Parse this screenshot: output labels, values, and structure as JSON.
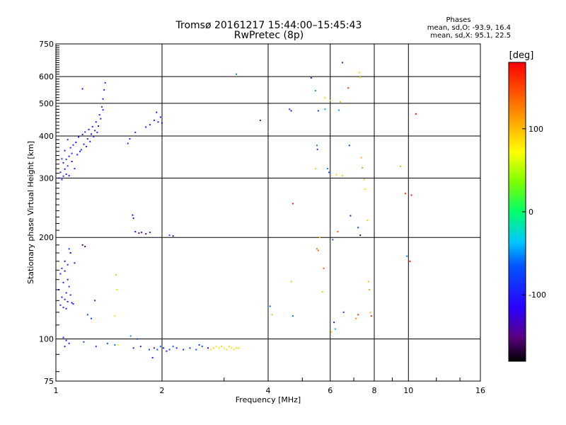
{
  "chart_data": {
    "type": "scatter",
    "title": "Tromsø 20161217 15:44:00–15:45:43",
    "subtitle": "RwPretec (8p)",
    "stats": {
      "heading": "Phases",
      "line_o": "mean, sd,O: -93.9, 16.4",
      "line_x": "mean, sd,X:  95.1, 22.5"
    },
    "xlabel": "Frequency [MHz]",
    "ylabel": "Stationary phase Virtual Height [km]",
    "x_scale": "log",
    "y_scale": "log",
    "xlim": [
      1,
      16
    ],
    "ylim": [
      75,
      750
    ],
    "x_ticks": [
      1,
      2,
      4,
      6,
      8,
      10,
      16
    ],
    "x_tick_labels": [
      "1",
      "2",
      "4",
      "6",
      "8",
      "10",
      "16"
    ],
    "y_ticks": [
      75,
      100,
      200,
      300,
      400,
      500,
      600,
      750
    ],
    "y_tick_labels": [
      "75",
      "100",
      "200",
      "300",
      "400",
      "500",
      "600",
      "750"
    ],
    "grid": true,
    "colorbar": {
      "label": "[deg]",
      "min": -180,
      "max": 180,
      "ticks": [
        -100,
        0,
        100
      ],
      "tick_labels": [
        "-100",
        "0",
        "100"
      ]
    },
    "series": [
      {
        "points": [
          [
            1.02,
            300
          ],
          [
            1.04,
            297
          ],
          [
            1.05,
            304
          ],
          [
            1.03,
            312
          ],
          [
            1.06,
            319
          ],
          [
            1.08,
            326
          ],
          [
            1.05,
            333
          ],
          [
            1.07,
            341
          ],
          [
            1.09,
            348
          ],
          [
            1.11,
            355
          ],
          [
            1.06,
            362
          ],
          [
            1.1,
            369
          ],
          [
            1.12,
            376
          ],
          [
            1.14,
            383
          ],
          [
            1.08,
            390
          ],
          [
            1.16,
            397
          ],
          [
            1.19,
            404
          ],
          [
            1.21,
            411
          ],
          [
            1.24,
            418
          ],
          [
            1.27,
            426
          ],
          [
            1.3,
            440
          ],
          [
            1.33,
            462
          ],
          [
            1.35,
            488
          ],
          [
            1.36,
            515
          ],
          [
            1.37,
            548
          ],
          [
            1.38,
            575
          ],
          [
            1.15,
            352
          ],
          [
            1.18,
            364
          ],
          [
            1.2,
            378
          ],
          [
            1.23,
            392
          ],
          [
            1.26,
            405
          ],
          [
            1.29,
            415
          ],
          [
            1.32,
            428
          ],
          [
            1.13,
            320
          ],
          [
            1.09,
            305
          ],
          [
            1.07,
            308
          ],
          [
            1.04,
            342
          ],
          [
            1.11,
            336
          ],
          [
            1.17,
            360
          ],
          [
            1.22,
            372
          ],
          [
            1.25,
            385
          ],
          [
            1.28,
            398
          ],
          [
            1.31,
            410
          ],
          [
            1.34,
            450
          ],
          [
            1.36,
            478
          ],
          [
            1.19,
            552
          ],
          [
            1.6,
            380
          ],
          [
            1.62,
            392
          ],
          [
            1.68,
            410
          ],
          [
            1.8,
            425
          ],
          [
            1.85,
            432
          ],
          [
            1.9,
            445
          ],
          [
            1.95,
            440
          ],
          [
            2.0,
            437
          ],
          [
            1.93,
            470
          ],
          [
            1.98,
            455
          ],
          [
            1.65,
            233
          ],
          [
            1.66,
            228
          ],
          [
            1.68,
            208
          ],
          [
            1.72,
            206
          ],
          [
            1.75,
            207
          ],
          [
            1.8,
            205
          ],
          [
            1.85,
            207
          ],
          [
            2.1,
            203
          ],
          [
            2.15,
            202
          ],
          [
            3.25,
            610
          ],
          [
            3.8,
            445
          ],
          [
            1.04,
            162
          ],
          [
            1.06,
            159
          ],
          [
            1.03,
            156
          ],
          [
            1.08,
            150
          ],
          [
            1.05,
            147
          ],
          [
            1.09,
            143
          ],
          [
            1.02,
            140
          ],
          [
            1.07,
            137
          ],
          [
            1.1,
            135
          ],
          [
            1.04,
            133
          ],
          [
            1.06,
            131
          ],
          [
            1.08,
            129
          ],
          [
            1.11,
            128
          ],
          [
            1.03,
            126
          ],
          [
            1.05,
            124
          ],
          [
            1.07,
            123
          ],
          [
            1.12,
            127
          ],
          [
            1.09,
            185
          ],
          [
            1.1,
            180
          ],
          [
            1.06,
            170
          ],
          [
            1.08,
            166
          ],
          [
            1.13,
            168
          ],
          [
            1.19,
            190
          ],
          [
            1.21,
            188
          ],
          [
            1.23,
            118
          ],
          [
            1.26,
            115
          ],
          [
            1.29,
            130
          ],
          [
            1.05,
            101
          ],
          [
            1.07,
            99
          ],
          [
            1.09,
            97
          ],
          [
            1.06,
            95
          ],
          [
            1.2,
            98
          ],
          [
            1.3,
            95
          ],
          [
            1.4,
            97
          ],
          [
            1.47,
            96
          ],
          [
            1.63,
            102
          ],
          [
            1.7,
            100
          ],
          [
            1.74,
            95
          ],
          [
            1.66,
            94
          ],
          [
            1.9,
            94
          ],
          [
            1.94,
            93
          ],
          [
            1.98,
            95
          ],
          [
            2.02,
            94
          ],
          [
            2.06,
            92
          ],
          [
            2.1,
            93
          ],
          [
            2.15,
            95
          ],
          [
            2.2,
            94
          ],
          [
            2.3,
            93
          ],
          [
            2.4,
            94
          ],
          [
            2.5,
            93
          ],
          [
            2.55,
            96
          ],
          [
            2.6,
            95
          ],
          [
            2.7,
            94
          ],
          [
            1.88,
            88
          ],
          [
            1.84,
            93
          ],
          [
            4.05,
            125
          ],
          [
            4.6,
            480
          ],
          [
            4.65,
            475
          ],
          [
            4.7,
            117
          ],
          [
            5.3,
            595
          ],
          [
            5.45,
            545
          ],
          [
            5.5,
            375
          ],
          [
            5.52,
            365
          ],
          [
            5.55,
            475
          ],
          [
            5.8,
            480
          ],
          [
            5.9,
            320
          ],
          [
            5.95,
            312
          ],
          [
            6.1,
            197
          ],
          [
            6.15,
            112
          ],
          [
            6.2,
            107
          ],
          [
            6.5,
            660
          ],
          [
            6.55,
            120
          ],
          [
            6.8,
            375
          ],
          [
            6.85,
            232
          ],
          [
            7.2,
            214
          ],
          [
            7.3,
            203
          ],
          [
            6.35,
            477
          ],
          [
            9.9,
            176
          ],
          [
            10.1,
            170
          ],
          [
            10.5,
            465
          ]
        ],
        "phase_deg": [
          -110,
          -105,
          -112,
          -108,
          -115,
          -100,
          -118,
          -103,
          -111,
          -106,
          -113,
          -109,
          -102,
          -117,
          -104,
          -114,
          -107,
          -101,
          -116,
          -110,
          -108,
          -112,
          -106,
          -111,
          -109,
          -104,
          -113,
          -107,
          -110,
          -105,
          -112,
          -108,
          -114,
          -106,
          -111,
          -109,
          -103,
          -115,
          -110,
          -108,
          -112,
          -107,
          -109,
          -111,
          -106,
          -120,
          -105,
          -110,
          -108,
          -112,
          -106,
          -111,
          -104,
          -109,
          -130,
          -107,
          -115,
          -118,
          -135,
          -140,
          -150,
          -125,
          -110,
          -90,
          -145,
          -80,
          -110,
          -108,
          -112,
          -106,
          -111,
          -109,
          -103,
          -115,
          -110,
          -108,
          -112,
          -107,
          -109,
          -111,
          -106,
          -104,
          -113,
          -108,
          -102,
          -130,
          -120,
          -110,
          -125,
          -160,
          -155,
          -95,
          -100,
          -110,
          -108,
          -112,
          -106,
          -111,
          -100,
          -105,
          -95,
          -80,
          -70,
          -100,
          -110,
          -112,
          -108,
          -90,
          -85,
          -120,
          -115,
          -95,
          -88,
          -110,
          -105,
          -100,
          -95,
          -98,
          -92,
          -140,
          -110,
          -95,
          -85,
          -100,
          -140,
          -80,
          -105,
          -70,
          -75,
          -98,
          -100,
          -60,
          -75,
          -90,
          -95,
          -110,
          -55,
          -110,
          -105,
          -98,
          -140,
          -95,
          -165,
          -65,
          -78
        ]
      },
      {
        "points": [
          [
            2.75,
            93
          ],
          [
            2.8,
            94
          ],
          [
            2.85,
            95
          ],
          [
            2.9,
            94
          ],
          [
            2.95,
            95
          ],
          [
            3.0,
            94
          ],
          [
            3.05,
            93
          ],
          [
            3.1,
            95
          ],
          [
            3.15,
            94
          ],
          [
            3.2,
            93
          ],
          [
            3.25,
            94
          ],
          [
            3.3,
            94
          ],
          [
            1.48,
            155
          ],
          [
            1.49,
            140
          ],
          [
            1.47,
            117
          ],
          [
            1.5,
            96
          ],
          [
            4.1,
            118
          ],
          [
            4.7,
            252
          ],
          [
            4.65,
            148
          ],
          [
            5.45,
            320
          ],
          [
            5.5,
            185
          ],
          [
            5.55,
            183
          ],
          [
            5.6,
            200
          ],
          [
            5.75,
            162
          ],
          [
            5.7,
            138
          ],
          [
            5.8,
            520
          ],
          [
            6.0,
            510
          ],
          [
            6.05,
            105
          ],
          [
            6.25,
            307
          ],
          [
            6.3,
            208
          ],
          [
            6.4,
            505
          ],
          [
            6.5,
            305
          ],
          [
            6.75,
            555
          ],
          [
            7.25,
            617
          ],
          [
            7.3,
            597
          ],
          [
            7.35,
            345
          ],
          [
            7.4,
            322
          ],
          [
            7.5,
            297
          ],
          [
            7.55,
            278
          ],
          [
            7.65,
            225
          ],
          [
            7.7,
            148
          ],
          [
            7.75,
            140
          ],
          [
            7.8,
            120
          ],
          [
            7.85,
            117
          ],
          [
            7.1,
            115
          ],
          [
            7.2,
            118
          ],
          [
            9.5,
            325
          ],
          [
            9.8,
            270
          ],
          [
            10.2,
            267
          ]
        ],
        "phase_deg": [
          90,
          95,
          92,
          88,
          96,
          90,
          94,
          91,
          93,
          89,
          92,
          95,
          100,
          95,
          90,
          85,
          110,
          170,
          105,
          100,
          135,
          140,
          105,
          145,
          100,
          95,
          105,
          100,
          95,
          150,
          112,
          100,
          160,
          95,
          100,
          110,
          120,
          100,
          95,
          100,
          105,
          110,
          100,
          160,
          125,
          160,
          110,
          165,
          170
        ]
      }
    ]
  }
}
